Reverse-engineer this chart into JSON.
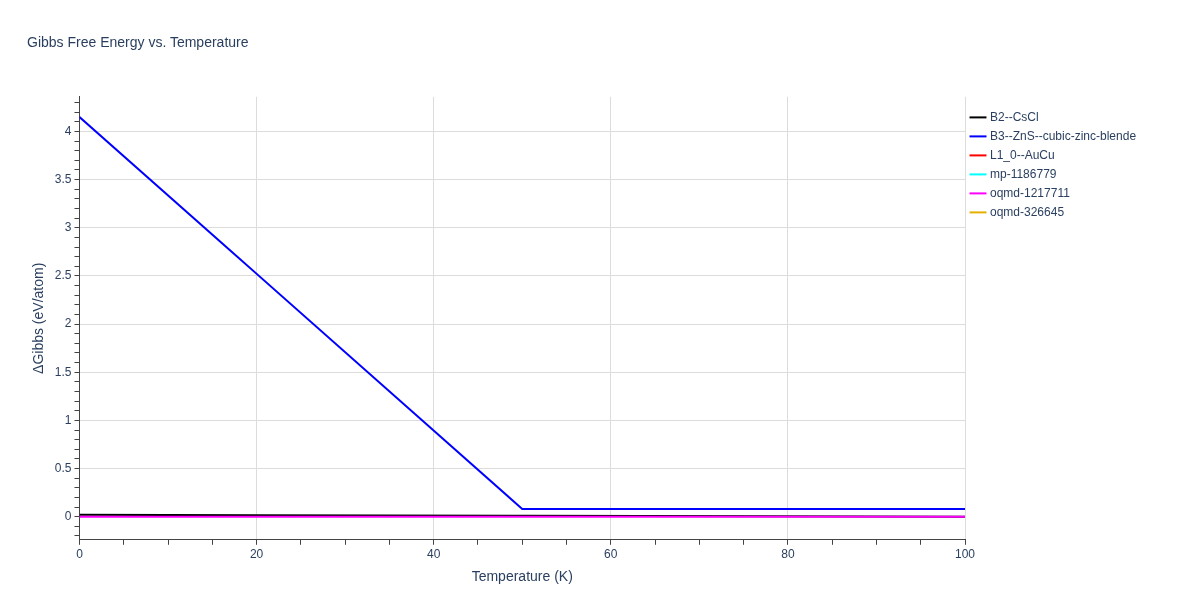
{
  "chart_data": {
    "type": "line",
    "title": "Gibbs Free Energy vs. Temperature",
    "xlabel": "Temperature (K)",
    "ylabel": "ΔGibbs (eV/atom)",
    "xlim": [
      0,
      100
    ],
    "xticks": [
      0,
      {
        "value": 5,
        "label": null
      },
      {
        "value": 10,
        "label": null
      },
      {
        "value": 15,
        "label": null
      },
      20,
      {
        "value": 25,
        "label": null
      },
      {
        "value": 30,
        "label": null
      },
      {
        "value": 35,
        "label": null
      },
      40,
      {
        "value": 45,
        "label": null
      },
      {
        "value": 50,
        "label": null
      },
      {
        "value": 55,
        "label": null
      },
      60,
      {
        "value": 65,
        "label": null
      },
      {
        "value": 70,
        "label": null
      },
      {
        "value": 75,
        "label": null
      },
      80,
      {
        "value": 85,
        "label": null
      },
      {
        "value": 90,
        "label": null
      },
      {
        "value": 95,
        "label": null
      },
      100
    ],
    "ylim": [
      -0.24,
      4.36
    ],
    "yticks": [
      {
        "value": -0.2,
        "label": null
      },
      {
        "value": -0.1,
        "label": null
      },
      0,
      {
        "value": 0.1,
        "label": null
      },
      {
        "value": 0.2,
        "label": null
      },
      {
        "value": 0.3,
        "label": null
      },
      {
        "value": 0.4,
        "label": null
      },
      0.5,
      {
        "value": 0.6,
        "label": null
      },
      {
        "value": 0.7,
        "label": null
      },
      {
        "value": 0.8,
        "label": null
      },
      {
        "value": 0.9,
        "label": null
      },
      1,
      {
        "value": 1.1,
        "label": null
      },
      {
        "value": 1.2,
        "label": null
      },
      {
        "value": 1.3,
        "label": null
      },
      {
        "value": 1.4,
        "label": null
      },
      1.5,
      {
        "value": 1.6,
        "label": null
      },
      {
        "value": 1.7,
        "label": null
      },
      {
        "value": 1.8,
        "label": null
      },
      {
        "value": 1.9,
        "label": null
      },
      2,
      {
        "value": 2.1,
        "label": null
      },
      {
        "value": 2.2,
        "label": null
      },
      {
        "value": 2.3,
        "label": null
      },
      {
        "value": 2.4,
        "label": null
      },
      2.5,
      {
        "value": 2.6,
        "label": null
      },
      {
        "value": 2.7,
        "label": null
      },
      {
        "value": 2.8,
        "label": null
      },
      {
        "value": 2.9,
        "label": null
      },
      3,
      {
        "value": 3.1,
        "label": null
      },
      {
        "value": 3.2,
        "label": null
      },
      {
        "value": 3.3,
        "label": null
      },
      {
        "value": 3.4,
        "label": null
      },
      3.5,
      {
        "value": 3.6,
        "label": null
      },
      {
        "value": 3.7,
        "label": null
      },
      {
        "value": 3.8,
        "label": null
      },
      {
        "value": 3.9,
        "label": null
      },
      4,
      {
        "value": 4.1,
        "label": null
      },
      {
        "value": 4.2,
        "label": null
      },
      {
        "value": 4.3,
        "label": null
      }
    ],
    "grid": true,
    "legend": "top right",
    "marker": "none",
    "line_style": "solid",
    "series": [
      {
        "name": "B2--CsCl",
        "color": "#000000",
        "x": [
          0,
          50,
          100
        ],
        "values": [
          0.02,
          0.01,
          0
        ]
      },
      {
        "name": "B3--ZnS--cubic-zinc-blende",
        "color": "#0000ff",
        "x": [
          0,
          50,
          100
        ],
        "values": [
          4.15,
          0.08,
          0.08
        ]
      },
      {
        "name": "L1_0--AuCu",
        "color": "#ff0000"
      },
      {
        "name": "mp-1186779",
        "color": "#00ffff"
      },
      {
        "name": "oqmd-1217711",
        "color": "#ff00ff",
        "x": [
          0,
          100
        ],
        "values": [
          0,
          0
        ]
      },
      {
        "name": "oqmd-326645",
        "color": "#e6b000"
      }
    ]
  }
}
